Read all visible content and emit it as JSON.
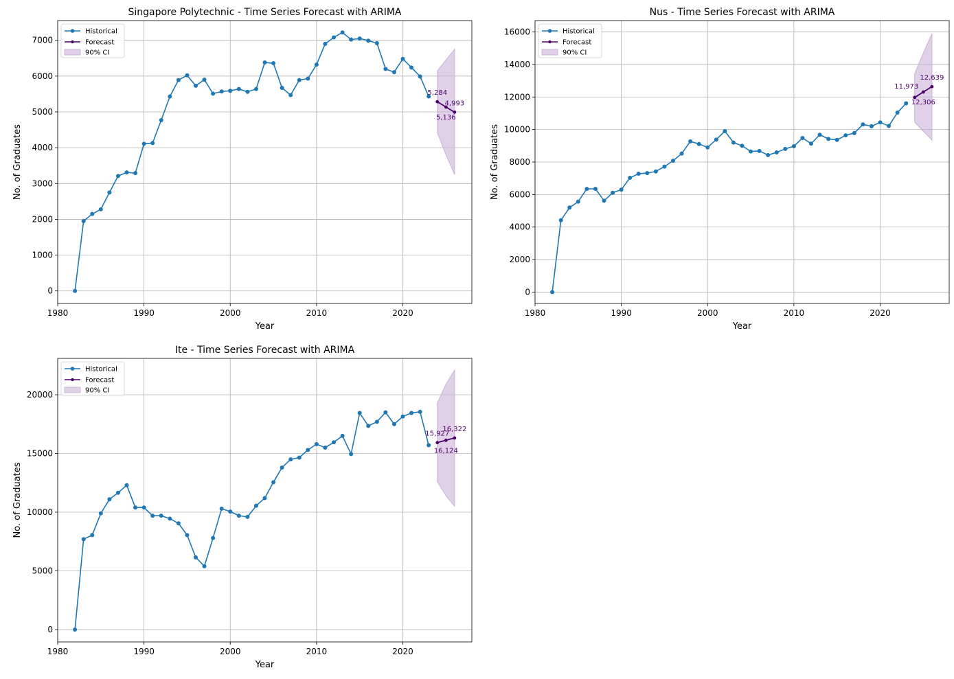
{
  "colors": {
    "historical": "#1f77b4",
    "forecast": "#4b0066",
    "ci": "#cbb3d9",
    "annotation": "#4b0066",
    "grid": "#b0b0b0",
    "axis": "#000000"
  },
  "chart_data": [
    {
      "type": "line",
      "title": "Singapore Polytechnic - Time Series Forecast with ARIMA",
      "xlabel": "Year",
      "ylabel": "No. of Graduates",
      "xlim": [
        1980,
        2028
      ],
      "ylim": [
        -350,
        7550
      ],
      "xticks": [
        1980,
        1990,
        2000,
        2010,
        2020
      ],
      "yticks": [
        0,
        1000,
        2000,
        3000,
        4000,
        5000,
        6000,
        7000
      ],
      "grid": true,
      "legend": {
        "position": "top-left",
        "entries": [
          "Historical",
          "Forecast",
          "90% CI"
        ]
      },
      "historical": {
        "x": [
          1982,
          1983,
          1984,
          1985,
          1986,
          1987,
          1988,
          1989,
          1990,
          1991,
          1992,
          1993,
          1994,
          1995,
          1996,
          1997,
          1998,
          1999,
          2000,
          2001,
          2002,
          2003,
          2004,
          2005,
          2006,
          2007,
          2008,
          2009,
          2010,
          2011,
          2012,
          2013,
          2014,
          2015,
          2016,
          2017,
          2018,
          2019,
          2020,
          2021,
          2022,
          2023
        ],
        "y": [
          0,
          1950,
          2150,
          2280,
          2750,
          3210,
          3310,
          3290,
          4110,
          4130,
          4770,
          5430,
          5890,
          6020,
          5730,
          5900,
          5510,
          5570,
          5590,
          5640,
          5560,
          5640,
          6380,
          6360,
          5670,
          5470,
          5890,
          5930,
          6320,
          6900,
          7080,
          7220,
          7020,
          7050,
          6990,
          6920,
          6200,
          6110,
          6480,
          6240,
          5990,
          5430
        ]
      },
      "forecast": {
        "x": [
          2024,
          2025,
          2026
        ],
        "y": [
          5284,
          5136,
          4993
        ]
      },
      "ci": {
        "x": [
          2024,
          2025,
          2026
        ],
        "upper": [
          6150,
          6450,
          6750
        ],
        "lower": [
          4420,
          3800,
          3250
        ]
      },
      "annotations": [
        {
          "text": "5,284",
          "x": 2024,
          "y": 5284,
          "pos": "above"
        },
        {
          "text": "5,136",
          "x": 2025,
          "y": 5136,
          "pos": "below"
        },
        {
          "text": "4,993",
          "x": 2026,
          "y": 4993,
          "pos": "above"
        }
      ]
    },
    {
      "type": "line",
      "title": "Nus - Time Series Forecast with ARIMA",
      "xlabel": "Year",
      "ylabel": "No. of Graduates",
      "xlim": [
        1980,
        2028
      ],
      "ylim": [
        -700,
        16700
      ],
      "xticks": [
        1980,
        1990,
        2000,
        2010,
        2020
      ],
      "yticks": [
        0,
        2000,
        4000,
        6000,
        8000,
        10000,
        12000,
        14000,
        16000
      ],
      "grid": true,
      "legend": {
        "position": "top-left",
        "entries": [
          "Historical",
          "Forecast",
          "90% CI"
        ]
      },
      "historical": {
        "x": [
          1982,
          1983,
          1984,
          1985,
          1986,
          1987,
          1988,
          1989,
          1990,
          1991,
          1992,
          1993,
          1994,
          1995,
          1996,
          1997,
          1998,
          1999,
          2000,
          2001,
          2002,
          2003,
          2004,
          2005,
          2006,
          2007,
          2008,
          2009,
          2010,
          2011,
          2012,
          2013,
          2014,
          2015,
          2016,
          2017,
          2018,
          2019,
          2020,
          2021,
          2022,
          2023
        ],
        "y": [
          0,
          4420,
          5200,
          5560,
          6350,
          6350,
          5620,
          6110,
          6300,
          7030,
          7280,
          7320,
          7420,
          7720,
          8080,
          8520,
          9270,
          9110,
          8900,
          9380,
          9900,
          9200,
          9000,
          8650,
          8680,
          8430,
          8590,
          8810,
          8970,
          9480,
          9130,
          9680,
          9420,
          9360,
          9640,
          9780,
          10310,
          10200,
          10440,
          10220,
          11040,
          11610
        ]
      },
      "forecast": {
        "x": [
          2024,
          2025,
          2026
        ],
        "y": [
          11973,
          12306,
          12639
        ]
      },
      "ci": {
        "x": [
          2024,
          2025,
          2026
        ],
        "upper": [
          13450,
          14700,
          15900
        ],
        "lower": [
          10450,
          9900,
          9350
        ]
      },
      "annotations": [
        {
          "text": "11,973",
          "x": 2024,
          "y": 11973,
          "pos": "above-left"
        },
        {
          "text": "12,306",
          "x": 2025,
          "y": 12306,
          "pos": "below"
        },
        {
          "text": "12,639",
          "x": 2026,
          "y": 12639,
          "pos": "above"
        }
      ]
    },
    {
      "type": "line",
      "title": "Ite - Time Series Forecast with ARIMA",
      "xlabel": "Year",
      "ylabel": "No. of Graduates",
      "xlim": [
        1980,
        2028
      ],
      "ylim": [
        -1050,
        23100
      ],
      "xticks": [
        1980,
        1990,
        2000,
        2010,
        2020
      ],
      "yticks": [
        0,
        5000,
        10000,
        15000,
        20000
      ],
      "grid": true,
      "legend": {
        "position": "top-left",
        "entries": [
          "Historical",
          "Forecast",
          "90% CI"
        ]
      },
      "historical": {
        "x": [
          1982,
          1983,
          1984,
          1985,
          1986,
          1987,
          1988,
          1989,
          1990,
          1991,
          1992,
          1993,
          1994,
          1995,
          1996,
          1997,
          1998,
          1999,
          2000,
          2001,
          2002,
          2003,
          2004,
          2005,
          2006,
          2007,
          2008,
          2009,
          2010,
          2011,
          2012,
          2013,
          2014,
          2015,
          2016,
          2017,
          2018,
          2019,
          2020,
          2021,
          2022,
          2023
        ],
        "y": [
          0,
          7700,
          8050,
          9900,
          11100,
          11650,
          12300,
          10400,
          10400,
          9700,
          9700,
          9450,
          9050,
          8050,
          6150,
          5400,
          7800,
          10300,
          10050,
          9700,
          9600,
          10550,
          11200,
          12550,
          13800,
          14500,
          14650,
          15300,
          15800,
          15500,
          15950,
          16500,
          14950,
          18450,
          17350,
          17700,
          18500,
          17500,
          18150,
          18450,
          18550,
          15700
        ]
      },
      "forecast": {
        "x": [
          2024,
          2025,
          2026
        ],
        "y": [
          15927,
          16124,
          16322
        ]
      },
      "ci": {
        "x": [
          2024,
          2025,
          2026
        ],
        "upper": [
          19300,
          20900,
          22100
        ],
        "lower": [
          12600,
          11400,
          10500
        ]
      },
      "annotations": [
        {
          "text": "15,927",
          "x": 2024,
          "y": 15927,
          "pos": "above"
        },
        {
          "text": "16,124",
          "x": 2025,
          "y": 16124,
          "pos": "below"
        },
        {
          "text": "16,322",
          "x": 2026,
          "y": 16322,
          "pos": "above"
        }
      ]
    }
  ]
}
